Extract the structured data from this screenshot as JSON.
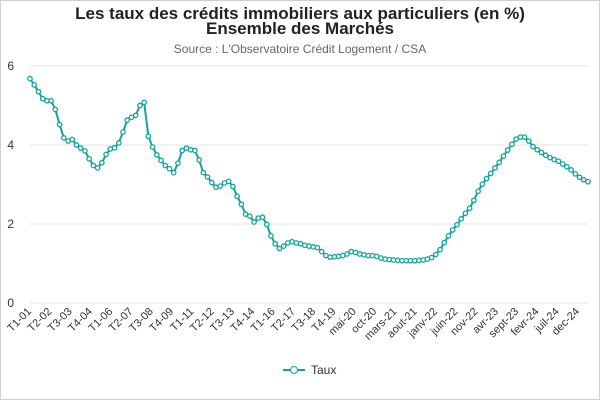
{
  "chart_data": {
    "type": "line",
    "title": "Les taux des crédits immobiliers aux particuliers (en %)",
    "subtitle": "Ensemble des Marchés",
    "source": "Source : L'Observatoire Crédit Logement / CSA",
    "ylim": [
      0,
      6
    ],
    "yticks": [
      0,
      2,
      4,
      6
    ],
    "xtick_labels": [
      "T1-01",
      "T2-02",
      "T3-03",
      "T4-04",
      "T1-06",
      "T2-07",
      "T3-08",
      "T4-09",
      "T1-11",
      "T2-12",
      "T3-13",
      "T4-14",
      "T1-16",
      "T2-17",
      "T3-18",
      "T4-19",
      "mai-20",
      "oct-20",
      "mars-21",
      "aout-21",
      "janv-22",
      "juin-22",
      "nov-22",
      "avr-23",
      "sept-23",
      "fevr-24",
      "juil-24",
      "dec-24"
    ],
    "grid": "horizontal",
    "legend_position": "bottom",
    "color": "#13a59a",
    "series": [
      {
        "name": "Taux",
        "values": [
          5.68,
          5.52,
          5.35,
          5.17,
          5.12,
          5.12,
          4.9,
          4.52,
          4.18,
          4.1,
          4.14,
          4.0,
          3.92,
          3.85,
          3.65,
          3.48,
          3.42,
          3.55,
          3.76,
          3.9,
          3.93,
          4.05,
          4.33,
          4.63,
          4.7,
          4.75,
          5.0,
          5.08,
          4.22,
          3.95,
          3.75,
          3.61,
          3.48,
          3.4,
          3.3,
          3.54,
          3.86,
          3.92,
          3.88,
          3.86,
          3.62,
          3.3,
          3.19,
          3.05,
          2.93,
          2.96,
          3.04,
          3.08,
          2.95,
          2.7,
          2.5,
          2.25,
          2.2,
          2.05,
          2.15,
          2.17,
          1.99,
          1.7,
          1.5,
          1.38,
          1.44,
          1.52,
          1.55,
          1.52,
          1.5,
          1.46,
          1.44,
          1.42,
          1.4,
          1.3,
          1.2,
          1.16,
          1.17,
          1.18,
          1.2,
          1.24,
          1.3,
          1.28,
          1.24,
          1.22,
          1.2,
          1.2,
          1.18,
          1.14,
          1.11,
          1.1,
          1.09,
          1.08,
          1.07,
          1.07,
          1.07,
          1.07,
          1.08,
          1.09,
          1.11,
          1.15,
          1.23,
          1.35,
          1.53,
          1.7,
          1.85,
          1.98,
          2.13,
          2.27,
          2.4,
          2.6,
          2.83,
          3.01,
          3.15,
          3.28,
          3.42,
          3.56,
          3.72,
          3.87,
          4.02,
          4.15,
          4.2,
          4.2,
          4.1,
          3.96,
          3.88,
          3.81,
          3.74,
          3.68,
          3.63,
          3.59,
          3.52,
          3.45,
          3.37,
          3.27,
          3.18,
          3.12,
          3.07
        ]
      }
    ]
  }
}
